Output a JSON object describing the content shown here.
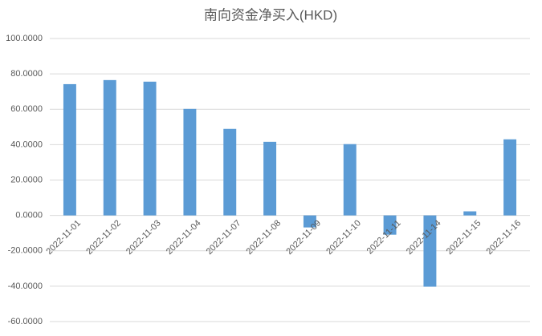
{
  "chart_data": {
    "type": "bar",
    "title": "南向资金净买入(HKD)",
    "categories": [
      "2022-11-01",
      "2022-11-02",
      "2022-11-03",
      "2022-11-04",
      "2022-11-07",
      "2022-11-08",
      "2022-11-09",
      "2022-11-10",
      "2022-11-11",
      "2022-11-14",
      "2022-11-15",
      "2022-11-16"
    ],
    "values": [
      74.2,
      76.5,
      75.6,
      60.2,
      48.9,
      41.6,
      -6.8,
      40.3,
      -10.9,
      -40.3,
      2.3,
      43.0
    ],
    "color": "#5b9bd5",
    "ylim": [
      -60,
      100
    ],
    "yticks": [
      {
        "value": -60,
        "label": "-60.0000"
      },
      {
        "value": -40,
        "label": "-40.0000"
      },
      {
        "value": -20,
        "label": "-20.0000"
      },
      {
        "value": 0,
        "label": "0.0000"
      },
      {
        "value": 20,
        "label": "20.0000"
      },
      {
        "value": 40,
        "label": "40.0000"
      },
      {
        "value": 60,
        "label": "60.0000"
      },
      {
        "value": 80,
        "label": "80.0000"
      },
      {
        "value": 100,
        "label": "100.0000"
      }
    ],
    "grid": true
  }
}
